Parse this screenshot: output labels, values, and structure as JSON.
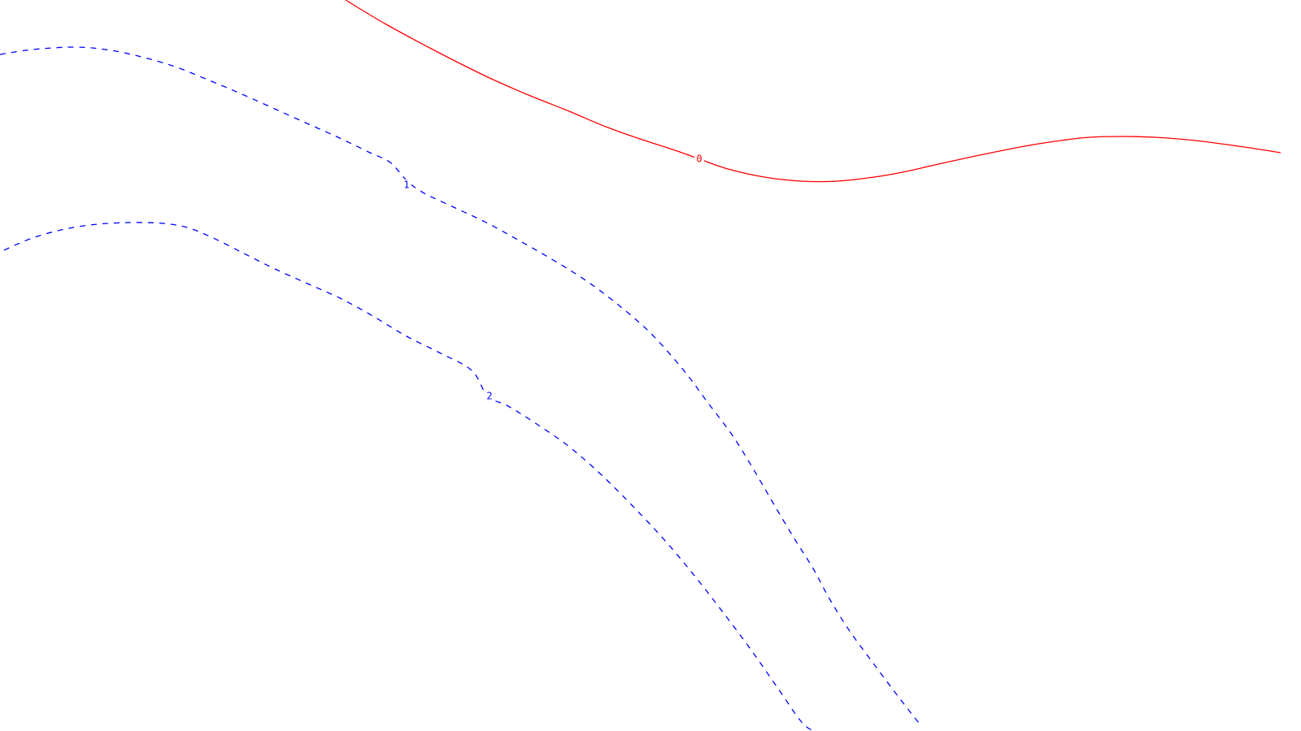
{
  "chart_data": {
    "type": "line",
    "title": "",
    "xlabel": "",
    "ylabel": "",
    "grid": false,
    "legend": "none",
    "series": [
      {
        "level_label": "0",
        "color": "#ff0000",
        "style": "solid"
      },
      {
        "level_label": "1",
        "color": "#0000ff",
        "style": "dashed"
      },
      {
        "level_label": "2",
        "color": "#0000ff",
        "style": "dashed"
      }
    ]
  }
}
